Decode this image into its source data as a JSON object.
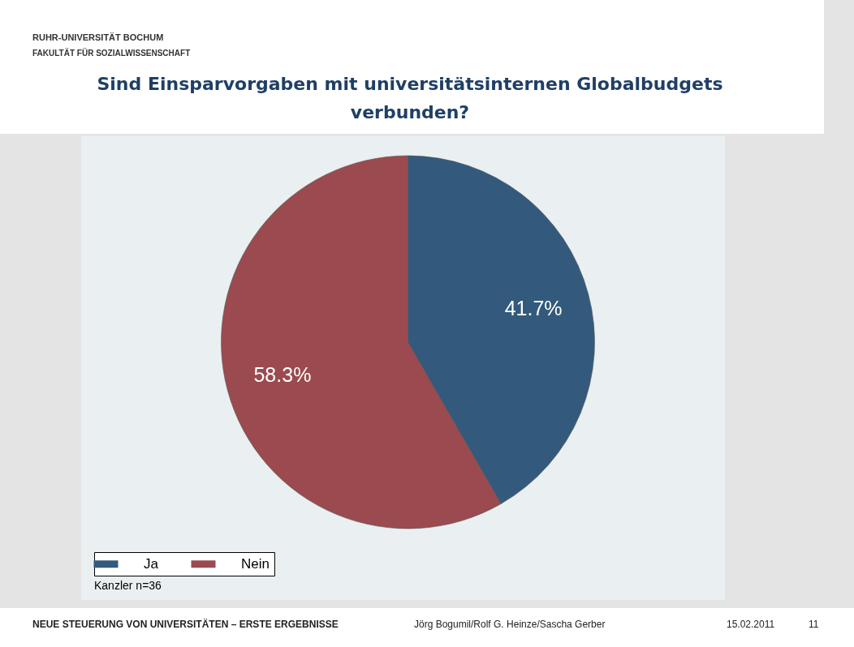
{
  "chart_data": {
    "type": "pie",
    "title": "Sind Einsparvorgaben mit universitätsinternen Globalbudgets verbunden?",
    "subtitle": "RUHR-UNIVERSITÄT BOCHUM FAKULTÄT FÜR SOZIALWISSENSCHAFT",
    "categories": [
      "Ja",
      "Nein"
    ],
    "values": [
      41.7,
      58.3
    ],
    "colors": [
      "#335a7c",
      "#9b4a4f"
    ],
    "value_labels": [
      "41.7%",
      "58.3%"
    ],
    "legend": "bottom",
    "annotations": [
      "Kanzler n=36",
      "NEUE STEUERUNG VON UNIVERSITÄTEN – ERSTE ERGEBNISSE",
      "Jörg Bogumil/Rolf G. Heinze/Sascha Gerber",
      "15.02.2011",
      "11"
    ]
  }
}
